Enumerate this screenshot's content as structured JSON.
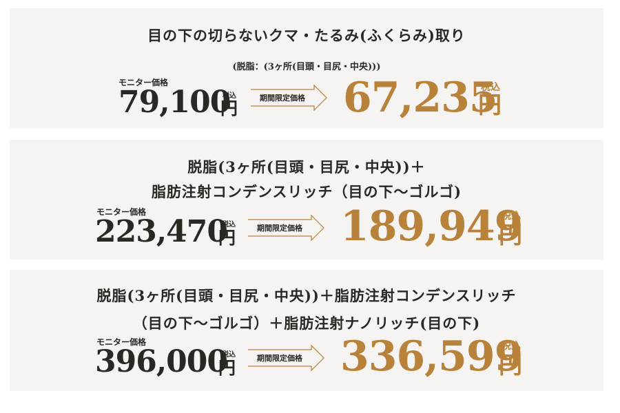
{
  "plans": [
    {
      "title_lines": [
        "目の下の切らないクマ・たるみ(ふくらみ)取り"
      ],
      "subtitle": "(脱脂：(3ヶ所(目頭・目尻・中央)))",
      "monitor_label": "モニター価格",
      "original_price": "79,100",
      "tax_label": "税込",
      "yen": "円",
      "arrow_label": "期間限定価格",
      "sale_price": "67,235"
    },
    {
      "title_lines": [
        "脱脂(3ヶ所(目頭・目尻・中央))＋",
        "脂肪注射コンデンスリッチ（目の下〜ゴルゴ)"
      ],
      "monitor_label": "モニター価格",
      "original_price": "223,470",
      "tax_label": "税込",
      "yen": "円",
      "arrow_label": "期間限定価格",
      "sale_price": "189,949"
    },
    {
      "title_lines": [
        "脱脂(3ヶ所(目頭・目尻・中央))＋脂肪注射コンデンスリッチ",
        "（目の下〜ゴルゴ）＋脂肪注射ナノリッチ(目の下)"
      ],
      "monitor_label": "モニター価格",
      "original_price": "396,000",
      "tax_label": "税込",
      "yen": "円",
      "arrow_label": "期間限定価格",
      "sale_price": "336,599"
    }
  ],
  "colors": {
    "accent": "#b9823a",
    "text": "#2b2722",
    "card_bg": "#f5f4f3"
  }
}
